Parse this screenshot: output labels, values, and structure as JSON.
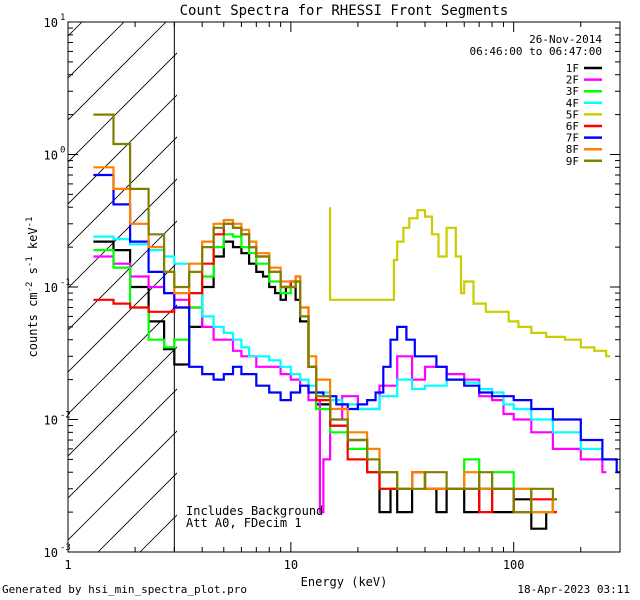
{
  "chart_data": {
    "type": "line",
    "title": "Count Spectra for RHESSI Front Segments",
    "xlabel": "Energy (keV)",
    "ylabel": "counts cm^-2 s^-1 keV^-1",
    "xscale": "log",
    "yscale": "log",
    "xlim": [
      1,
      300
    ],
    "ylim": [
      0.001,
      10
    ],
    "x_ticks": [
      1,
      10,
      100
    ],
    "x_tick_labels": [
      "1",
      "10",
      "100"
    ],
    "y_ticks": [
      0.001,
      0.01,
      0.1,
      1,
      10
    ],
    "y_tick_labels": [
      [
        "10",
        "-3"
      ],
      [
        "10",
        "-2"
      ],
      [
        "10",
        "-1"
      ],
      [
        "10",
        "0"
      ],
      [
        "10",
        "1"
      ]
    ],
    "shaded_region": [
      1,
      3
    ],
    "date": "26-Nov-2014",
    "time_range": "06:46:00 to 06:47:00",
    "notes": [
      "Includes Background",
      "Att A0, FDecim 1"
    ],
    "series": [
      {
        "name": "1F",
        "color": "#000000",
        "x": [
          1.3,
          1.6,
          1.9,
          2.3,
          2.7,
          3.0,
          3.5,
          4.0,
          4.5,
          5.0,
          5.5,
          6.0,
          6.5,
          7.0,
          7.5,
          8.0,
          8.5,
          9.0,
          9.5,
          10.0,
          10.5,
          11.0,
          12.0,
          13.0,
          15.0,
          18.0,
          22.0,
          25.0,
          28.0,
          30.0,
          35.0,
          40.0,
          45.0,
          50.0,
          60.0,
          70.0,
          80.0,
          100.0,
          120.0,
          140.0
        ],
        "y": [
          0.22,
          0.19,
          0.1,
          0.055,
          0.034,
          0.026,
          0.05,
          0.1,
          0.17,
          0.22,
          0.2,
          0.18,
          0.15,
          0.13,
          0.12,
          0.1,
          0.09,
          0.08,
          0.1,
          0.11,
          0.08,
          0.055,
          0.025,
          0.013,
          0.009,
          0.007,
          0.004,
          0.002,
          0.003,
          0.002,
          0.004,
          0.003,
          0.002,
          0.003,
          0.002,
          0.003,
          0.002,
          0.0025,
          0.0015,
          0.002
        ]
      },
      {
        "name": "2F",
        "color": "#ff00ff",
        "x": [
          1.3,
          1.6,
          1.9,
          2.3,
          2.7,
          3.0,
          3.5,
          4.0,
          4.5,
          5.0,
          5.5,
          6.0,
          6.5,
          7.0,
          8.0,
          9.0,
          10.0,
          11.0,
          12.0,
          13.5,
          14.0,
          15.0,
          17.0,
          20.0,
          25.0,
          30.0,
          35.0,
          40.0,
          50.0,
          60.0,
          70.0,
          80.0,
          90.0,
          100.0,
          120.0,
          150.0,
          200.0,
          250.0
        ],
        "y": [
          0.17,
          0.15,
          0.12,
          0.1,
          0.09,
          0.08,
          0.07,
          0.05,
          0.04,
          0.04,
          0.033,
          0.03,
          0.03,
          0.025,
          0.025,
          0.022,
          0.02,
          0.018,
          0.014,
          0.002,
          0.005,
          0.01,
          0.015,
          0.012,
          0.018,
          0.03,
          0.02,
          0.025,
          0.022,
          0.02,
          0.015,
          0.014,
          0.011,
          0.01,
          0.008,
          0.006,
          0.005,
          0.004
        ]
      },
      {
        "name": "3F",
        "color": "#00ff00",
        "x": [
          1.3,
          1.6,
          1.9,
          2.3,
          2.7,
          3.0,
          3.5,
          4.0,
          4.5,
          5.0,
          5.5,
          6.0,
          6.5,
          7.0,
          8.0,
          9.0,
          10.0,
          10.5,
          11.0,
          12.0,
          13.0,
          15.0,
          18.0,
          22.0,
          25.0,
          30.0,
          35.0,
          40.0,
          50.0,
          60.0,
          70.0,
          80.0,
          100.0,
          120.0,
          150.0
        ],
        "y": [
          0.19,
          0.14,
          0.07,
          0.04,
          0.035,
          0.04,
          0.07,
          0.12,
          0.2,
          0.25,
          0.24,
          0.2,
          0.18,
          0.15,
          0.11,
          0.09,
          0.1,
          0.11,
          0.06,
          0.025,
          0.012,
          0.008,
          0.006,
          0.004,
          0.003,
          0.003,
          0.004,
          0.003,
          0.003,
          0.005,
          0.003,
          0.004,
          0.003,
          0.002,
          0.0025
        ]
      },
      {
        "name": "4F",
        "color": "#00ffff",
        "x": [
          1.3,
          1.6,
          1.9,
          2.3,
          2.7,
          3.0,
          3.5,
          4.0,
          4.5,
          5.0,
          5.5,
          6.0,
          6.5,
          7.0,
          8.0,
          9.0,
          10.0,
          11.0,
          12.0,
          13.0,
          15.0,
          17.0,
          20.0,
          25.0,
          30.0,
          35.0,
          40.0,
          50.0,
          60.0,
          70.0,
          80.0,
          90.0,
          100.0,
          120.0,
          150.0,
          200.0,
          250.0
        ],
        "y": [
          0.24,
          0.23,
          0.21,
          0.19,
          0.17,
          0.15,
          0.09,
          0.06,
          0.05,
          0.045,
          0.04,
          0.035,
          0.03,
          0.03,
          0.028,
          0.025,
          0.022,
          0.02,
          0.018,
          0.016,
          0.014,
          0.013,
          0.012,
          0.015,
          0.02,
          0.017,
          0.018,
          0.02,
          0.019,
          0.017,
          0.016,
          0.013,
          0.012,
          0.01,
          0.008,
          0.006,
          0.005
        ]
      },
      {
        "name": "5F",
        "color": "#cccc00",
        "x": [
          15.0,
          15.0,
          29.0,
          30.0,
          32.0,
          34.0,
          37.0,
          40.0,
          43.0,
          46.0,
          50.0,
          55.0,
          58.0,
          60.0,
          66.0,
          75.0,
          85.0,
          95.0,
          105.0,
          120.0,
          140.0,
          170.0,
          200.0,
          230.0,
          260.0
        ],
        "y": [
          0.4,
          0.08,
          0.16,
          0.22,
          0.28,
          0.33,
          0.38,
          0.34,
          0.25,
          0.17,
          0.28,
          0.17,
          0.09,
          0.11,
          0.075,
          0.065,
          0.065,
          0.055,
          0.05,
          0.045,
          0.042,
          0.04,
          0.035,
          0.033,
          0.03
        ]
      },
      {
        "name": "6F",
        "color": "#ff0000",
        "x": [
          1.3,
          1.6,
          1.9,
          2.3,
          2.7,
          3.0,
          3.5,
          4.0,
          4.5,
          5.0,
          5.5,
          6.0,
          6.5,
          7.0,
          8.0,
          9.0,
          10.0,
          10.5,
          11.0,
          12.0,
          13.0,
          15.0,
          18.0,
          22.0,
          25.0,
          30.0,
          35.0,
          40.0,
          50.0,
          60.0,
          70.0,
          80.0,
          100.0,
          120.0,
          150.0
        ],
        "y": [
          0.08,
          0.075,
          0.07,
          0.065,
          0.065,
          0.07,
          0.09,
          0.15,
          0.25,
          0.3,
          0.28,
          0.25,
          0.2,
          0.17,
          0.13,
          0.1,
          0.11,
          0.12,
          0.07,
          0.025,
          0.014,
          0.009,
          0.005,
          0.004,
          0.003,
          0.003,
          0.004,
          0.003,
          0.003,
          0.003,
          0.002,
          0.003,
          0.002,
          0.0025,
          0.002
        ]
      },
      {
        "name": "7F",
        "color": "#0000ff",
        "x": [
          1.3,
          1.6,
          1.9,
          2.3,
          2.7,
          3.0,
          3.5,
          4.0,
          4.5,
          5.0,
          5.5,
          6.0,
          7.0,
          8.0,
          9.0,
          10.0,
          11.0,
          12.0,
          14.0,
          16.0,
          18.0,
          20.0,
          22.0,
          24.0,
          26.0,
          28.0,
          30.0,
          33.0,
          36.0,
          40.0,
          45.0,
          50.0,
          60.0,
          70.0,
          80.0,
          100.0,
          120.0,
          150.0,
          200.0,
          250.0,
          290.0
        ],
        "y": [
          0.7,
          0.42,
          0.22,
          0.13,
          0.09,
          0.07,
          0.025,
          0.022,
          0.02,
          0.022,
          0.025,
          0.022,
          0.018,
          0.016,
          0.014,
          0.016,
          0.018,
          0.016,
          0.015,
          0.013,
          0.012,
          0.013,
          0.014,
          0.016,
          0.025,
          0.04,
          0.05,
          0.04,
          0.03,
          0.03,
          0.025,
          0.02,
          0.018,
          0.016,
          0.015,
          0.014,
          0.012,
          0.01,
          0.007,
          0.005,
          0.004
        ]
      },
      {
        "name": "8F",
        "color": "#ff8000",
        "x": [
          1.3,
          1.6,
          1.9,
          2.3,
          2.7,
          3.0,
          3.5,
          4.0,
          4.5,
          5.0,
          5.5,
          6.0,
          6.5,
          7.0,
          8.0,
          9.0,
          10.0,
          10.5,
          11.0,
          12.0,
          13.0,
          15.0,
          18.0,
          22.0,
          25.0,
          30.0,
          35.0,
          40.0,
          50.0,
          60.0,
          70.0,
          80.0,
          100.0,
          120.0,
          150.0
        ],
        "y": [
          0.8,
          0.55,
          0.3,
          0.2,
          0.13,
          0.09,
          0.15,
          0.22,
          0.3,
          0.32,
          0.3,
          0.27,
          0.22,
          0.18,
          0.14,
          0.11,
          0.11,
          0.12,
          0.07,
          0.03,
          0.02,
          0.012,
          0.008,
          0.006,
          0.004,
          0.003,
          0.004,
          0.003,
          0.003,
          0.004,
          0.003,
          0.003,
          0.003,
          0.002,
          0.0025
        ]
      },
      {
        "name": "9F",
        "color": "#808000",
        "x": [
          1.3,
          1.6,
          1.9,
          2.3,
          2.7,
          3.0,
          3.5,
          4.0,
          4.5,
          5.0,
          5.5,
          6.0,
          6.5,
          7.0,
          8.0,
          9.0,
          10.0,
          10.5,
          11.0,
          12.0,
          13.0,
          15.0,
          18.0,
          22.0,
          25.0,
          30.0,
          35.0,
          40.0,
          50.0,
          60.0,
          70.0,
          80.0,
          100.0,
          120.0,
          150.0
        ],
        "y": [
          2.0,
          1.2,
          0.55,
          0.25,
          0.13,
          0.1,
          0.13,
          0.2,
          0.28,
          0.3,
          0.28,
          0.25,
          0.2,
          0.17,
          0.13,
          0.1,
          0.1,
          0.11,
          0.06,
          0.025,
          0.015,
          0.01,
          0.007,
          0.005,
          0.004,
          0.003,
          0.003,
          0.004,
          0.003,
          0.003,
          0.004,
          0.003,
          0.002,
          0.003,
          0.0025
        ]
      }
    ]
  },
  "footer": {
    "generated_by": "Generated by hsi_min_spectra_plot.pro",
    "timestamp": "18-Apr-2023 03:11"
  }
}
